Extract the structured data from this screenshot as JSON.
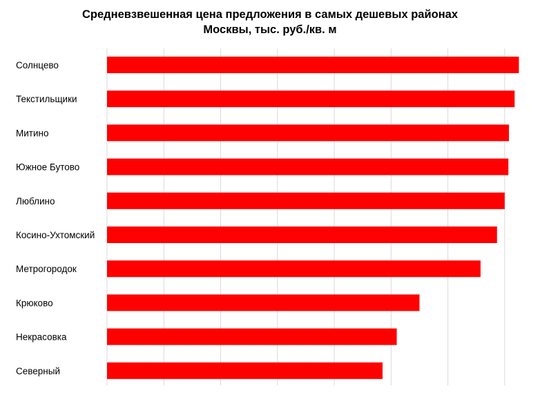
{
  "chart_data": {
    "type": "bar",
    "orientation": "horizontal",
    "title_line1": "Средневзвешенная цена предложения в самых дешевых районах",
    "title_line2": "Москвы, тыс. руб./кв. м",
    "categories": [
      "Солнцево",
      "Текстильщики",
      "Митино",
      "Южное Бутово",
      "Люблино",
      "Косино-Ухтомский",
      "Метрогородок",
      "Крюково",
      "Некрасовка",
      "Северный"
    ],
    "values": [
      145,
      143.5,
      141.5,
      141.3,
      140,
      137.3,
      131.5,
      110,
      102,
      97
    ],
    "xlim": [
      0,
      150
    ],
    "grid": true,
    "bar_color": "#ff0000",
    "xlabel": "",
    "ylabel": ""
  }
}
